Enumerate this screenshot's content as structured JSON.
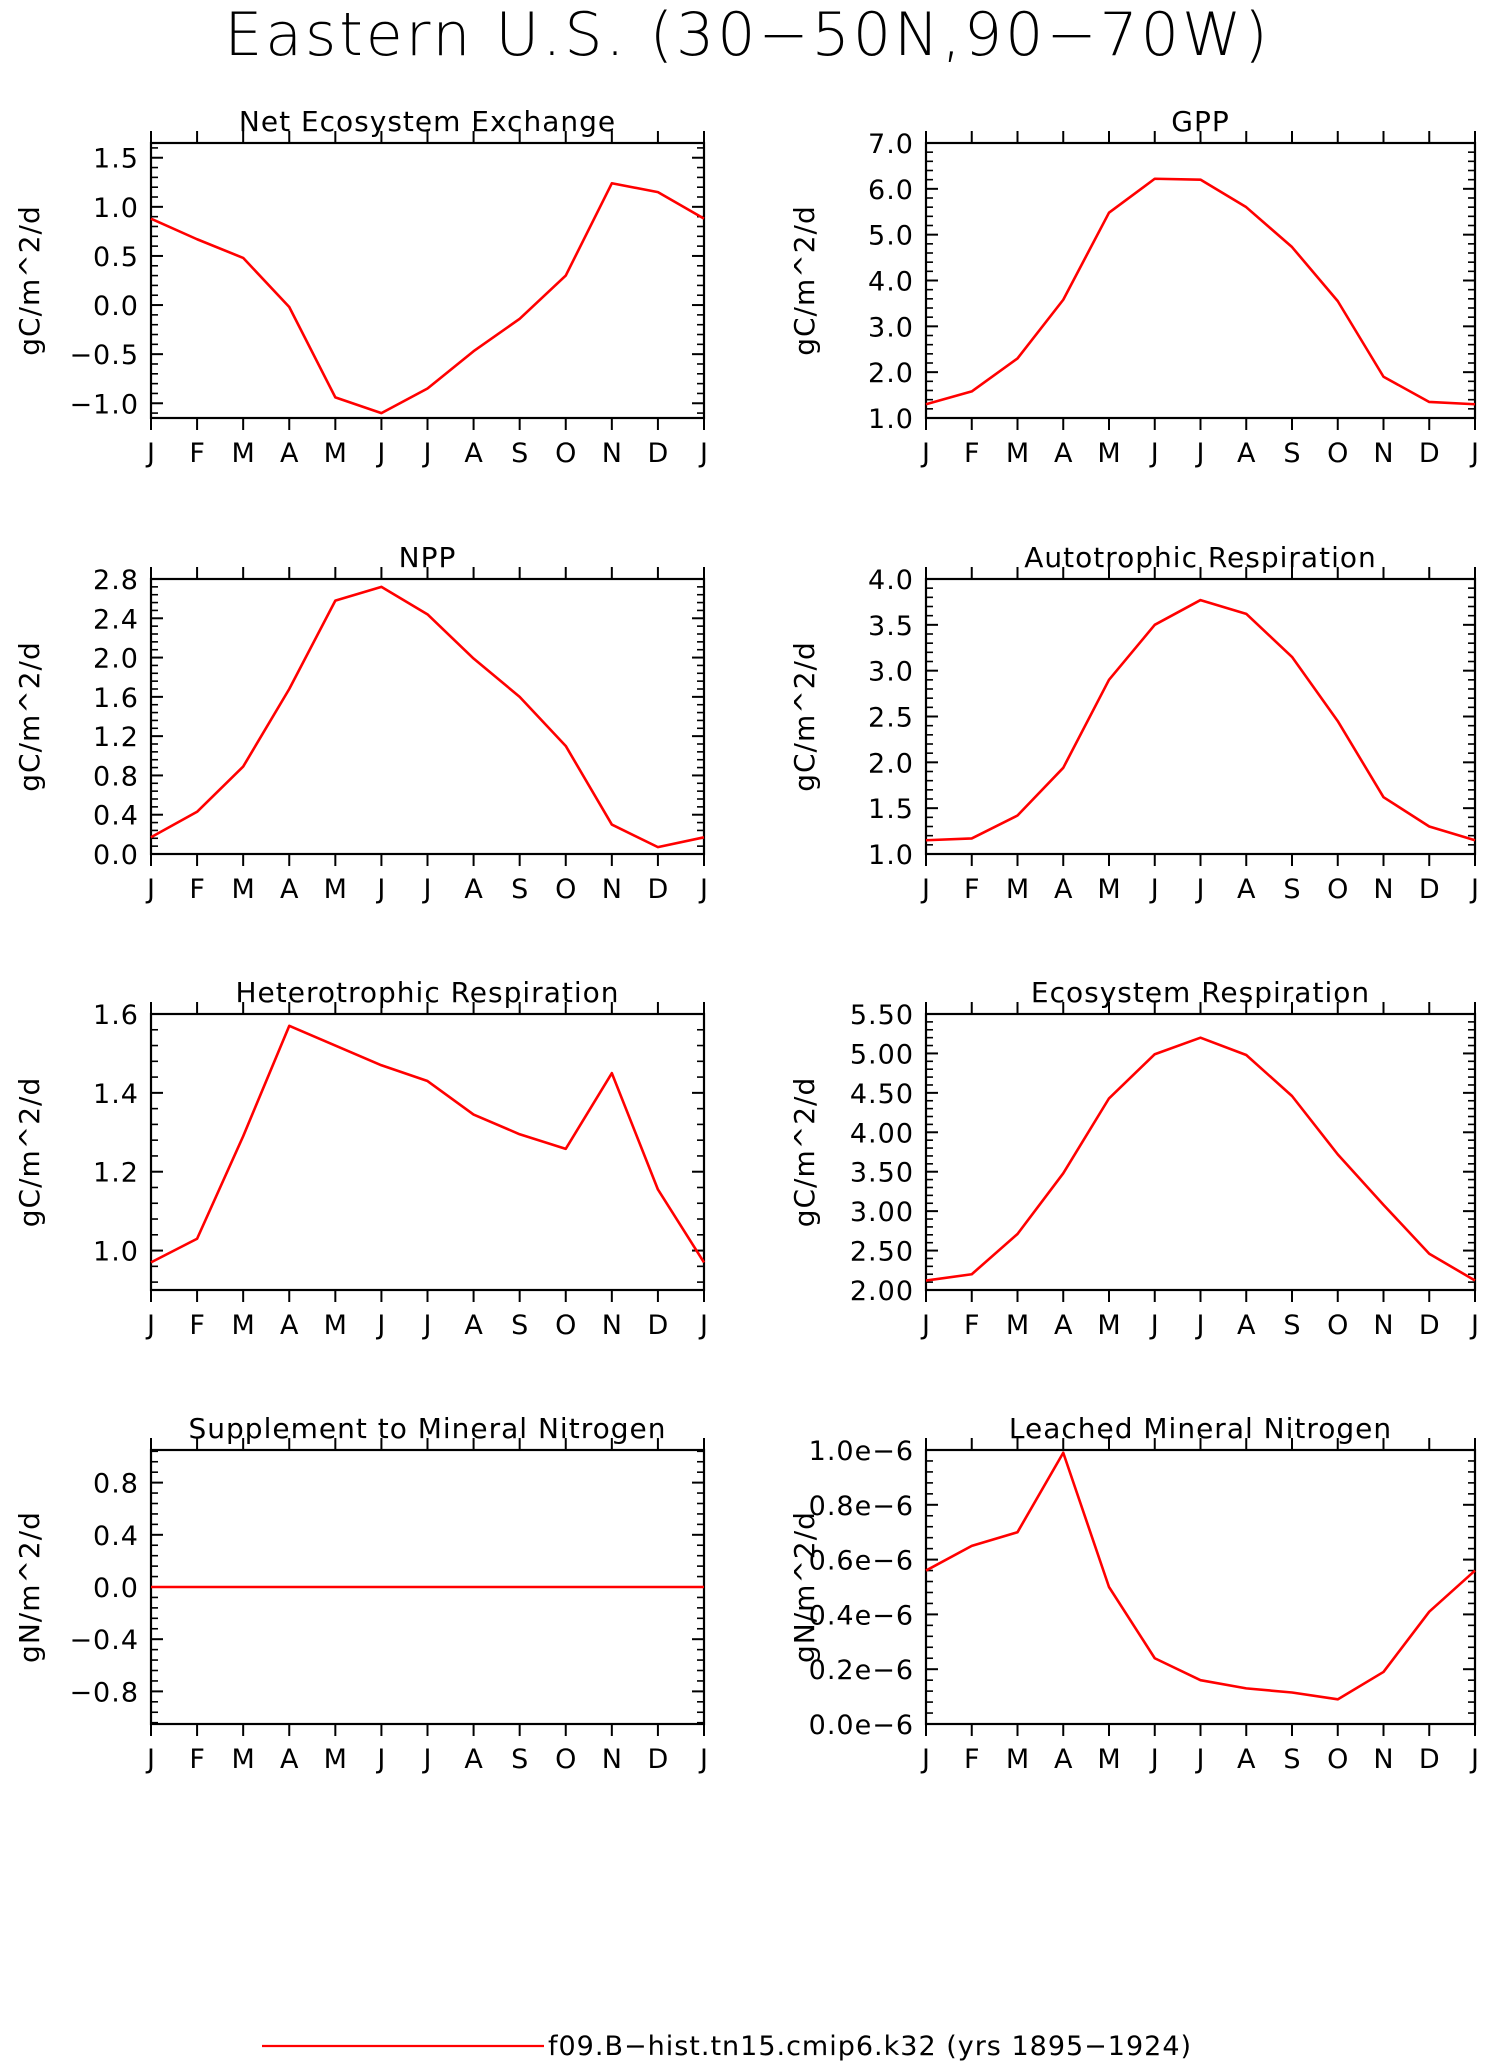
{
  "title": "Eastern U.S. (30−50N,90−70W)",
  "months": [
    "J",
    "F",
    "M",
    "A",
    "M",
    "J",
    "J",
    "A",
    "S",
    "O",
    "N",
    "D",
    "J"
  ],
  "line_color": "#ff0000",
  "legend": {
    "label": "f09.B−hist.tn15.cmip6.k32 (yrs 1895−1924)"
  },
  "chart_data": [
    {
      "type": "line",
      "title": "Net Ecosystem Exchange",
      "ylabel": "gC/m^2/d",
      "ylim": [
        -1.15,
        1.65
      ],
      "ytick_values": [
        -1.0,
        -0.5,
        0.0,
        0.5,
        1.0,
        1.5
      ],
      "ytick_labels": [
        "−1.0",
        "−0.5",
        "0.0",
        "0.5",
        "1.0",
        "1.5"
      ],
      "categories": [
        "J",
        "F",
        "M",
        "A",
        "M",
        "J",
        "J",
        "A",
        "S",
        "O",
        "N",
        "D",
        "J"
      ],
      "values": [
        0.88,
        0.67,
        0.48,
        -0.02,
        -0.94,
        -1.1,
        -0.85,
        -0.47,
        -0.14,
        0.3,
        1.24,
        1.15,
        0.88
      ]
    },
    {
      "type": "line",
      "title": "GPP",
      "ylabel": "gC/m^2/d",
      "ylim": [
        1.0,
        7.0
      ],
      "ytick_values": [
        1.0,
        2.0,
        3.0,
        4.0,
        5.0,
        6.0,
        7.0
      ],
      "ytick_labels": [
        "1.0",
        "2.0",
        "3.0",
        "4.0",
        "5.0",
        "6.0",
        "7.0"
      ],
      "categories": [
        "J",
        "F",
        "M",
        "A",
        "M",
        "J",
        "J",
        "A",
        "S",
        "O",
        "N",
        "D",
        "J"
      ],
      "values": [
        1.3,
        1.58,
        2.3,
        3.58,
        5.48,
        6.22,
        6.2,
        5.6,
        4.73,
        3.55,
        1.9,
        1.35,
        1.3
      ]
    },
    {
      "type": "line",
      "title": "NPP",
      "ylabel": "gC/m^2/d",
      "ylim": [
        0.0,
        2.8
      ],
      "ytick_values": [
        0.0,
        0.4,
        0.8,
        1.2,
        1.6,
        2.0,
        2.4,
        2.8
      ],
      "ytick_labels": [
        "0.0",
        "0.4",
        "0.8",
        "1.2",
        "1.6",
        "2.0",
        "2.4",
        "2.8"
      ],
      "categories": [
        "J",
        "F",
        "M",
        "A",
        "M",
        "J",
        "J",
        "A",
        "S",
        "O",
        "N",
        "D",
        "J"
      ],
      "values": [
        0.17,
        0.43,
        0.89,
        1.68,
        2.58,
        2.72,
        2.44,
        1.99,
        1.6,
        1.1,
        0.3,
        0.07,
        0.17
      ]
    },
    {
      "type": "line",
      "title": "Autotrophic Respiration",
      "ylabel": "gC/m^2/d",
      "ylim": [
        1.0,
        4.0
      ],
      "ytick_values": [
        1.0,
        1.5,
        2.0,
        2.5,
        3.0,
        3.5,
        4.0
      ],
      "ytick_labels": [
        "1.0",
        "1.5",
        "2.0",
        "2.5",
        "3.0",
        "3.5",
        "4.0"
      ],
      "categories": [
        "J",
        "F",
        "M",
        "A",
        "M",
        "J",
        "J",
        "A",
        "S",
        "O",
        "N",
        "D",
        "J"
      ],
      "values": [
        1.15,
        1.17,
        1.42,
        1.94,
        2.9,
        3.5,
        3.77,
        3.62,
        3.15,
        2.45,
        1.62,
        1.3,
        1.15
      ]
    },
    {
      "type": "line",
      "title": "Heterotrophic Respiration",
      "ylabel": "gC/m^2/d",
      "ylim": [
        0.9,
        1.6
      ],
      "ytick_values": [
        1.0,
        1.2,
        1.4,
        1.6
      ],
      "ytick_labels": [
        "1.0",
        "1.2",
        "1.4",
        "1.6"
      ],
      "categories": [
        "J",
        "F",
        "M",
        "A",
        "M",
        "J",
        "J",
        "A",
        "S",
        "O",
        "N",
        "D",
        "J"
      ],
      "values": [
        0.97,
        1.03,
        1.29,
        1.57,
        1.52,
        1.47,
        1.43,
        1.345,
        1.295,
        1.258,
        1.45,
        1.155,
        0.97
      ]
    },
    {
      "type": "line",
      "title": "Ecosystem Respiration",
      "ylabel": "gC/m^2/d",
      "ylim": [
        2.0,
        5.5
      ],
      "ytick_values": [
        2.0,
        2.5,
        3.0,
        3.5,
        4.0,
        4.5,
        5.0,
        5.5
      ],
      "ytick_labels": [
        "2.00",
        "2.50",
        "3.00",
        "3.50",
        "4.00",
        "4.50",
        "5.00",
        "5.50"
      ],
      "categories": [
        "J",
        "F",
        "M",
        "A",
        "M",
        "J",
        "J",
        "A",
        "S",
        "O",
        "N",
        "D",
        "J"
      ],
      "values": [
        2.12,
        2.2,
        2.71,
        3.48,
        4.43,
        4.99,
        5.2,
        4.98,
        4.46,
        3.72,
        3.08,
        2.46,
        2.12
      ]
    },
    {
      "type": "line",
      "title": "Supplement to Mineral Nitrogen",
      "ylabel": "gN/m^2/d",
      "ylim": [
        -1.05,
        1.05
      ],
      "ytick_values": [
        -0.8,
        -0.4,
        0.0,
        0.4,
        0.8
      ],
      "ytick_labels": [
        "−0.8",
        "−0.4",
        "0.0",
        "0.4",
        "0.8"
      ],
      "categories": [
        "J",
        "F",
        "M",
        "A",
        "M",
        "J",
        "J",
        "A",
        "S",
        "O",
        "N",
        "D",
        "J"
      ],
      "values": [
        0,
        0,
        0,
        0,
        0,
        0,
        0,
        0,
        0,
        0,
        0,
        0,
        0
      ]
    },
    {
      "type": "line",
      "title": "Leached Mineral Nitrogen",
      "ylabel": "gN/m^2/d",
      "ylim": [
        0.0,
        1e-06
      ],
      "ytick_values": [
        0.0,
        2e-07,
        4e-07,
        6e-07,
        8e-07,
        1e-06
      ],
      "ytick_labels": [
        "0.0e−6",
        "0.2e−6",
        "0.4e−6",
        "0.6e−6",
        "0.8e−6",
        "1.0e−6"
      ],
      "categories": [
        "J",
        "F",
        "M",
        "A",
        "M",
        "J",
        "J",
        "A",
        "S",
        "O",
        "N",
        "D",
        "J"
      ],
      "values": [
        5.6e-07,
        6.5e-07,
        7e-07,
        9.9e-07,
        5e-07,
        2.4e-07,
        1.6e-07,
        1.3e-07,
        1.15e-07,
        9e-08,
        1.9e-07,
        4.1e-07,
        5.6e-07
      ]
    }
  ]
}
